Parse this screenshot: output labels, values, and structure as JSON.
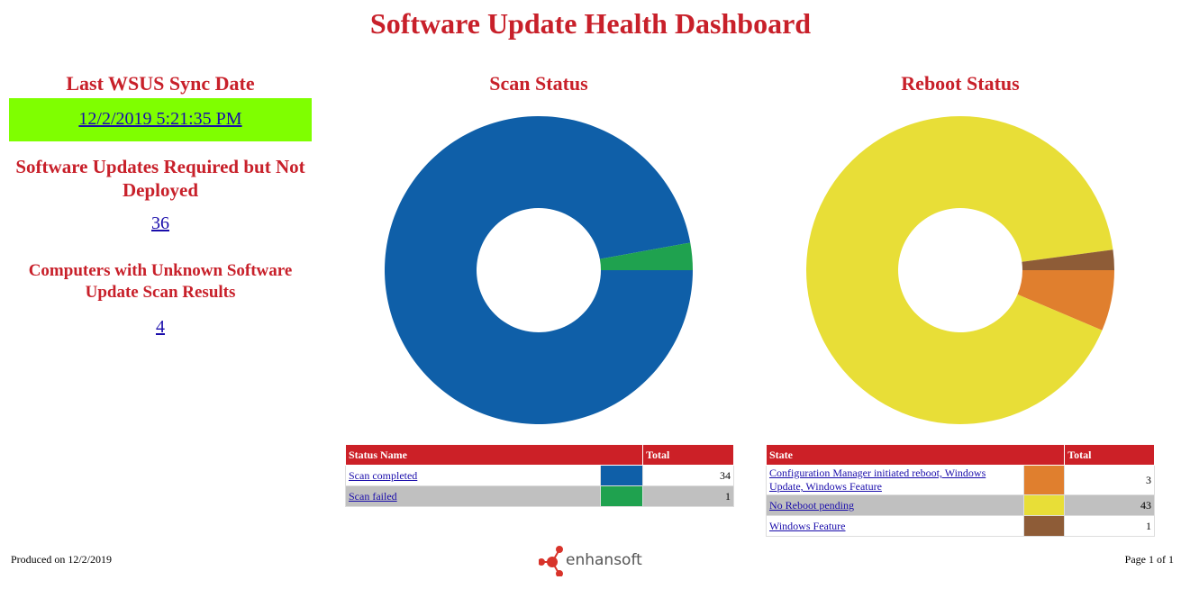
{
  "title": "Software Update Health Dashboard",
  "left": {
    "sync_title": "Last WSUS Sync Date",
    "sync_date": "12/2/2019 5:21:35 PM",
    "required_title": "Software Updates Required but Not Deployed",
    "required_value": 36,
    "unknown_title": "Computers with Unknown Software Update Scan Results",
    "unknown_value": 4
  },
  "chart_data": [
    {
      "type": "donut",
      "title": "Scan Status",
      "table_headers": [
        "Status Name",
        "Total"
      ],
      "categories": [
        "Scan completed",
        "Scan failed"
      ],
      "values": [
        34,
        1
      ],
      "colors": [
        "#0f5fa8",
        "#1fa24f"
      ]
    },
    {
      "type": "donut",
      "title": "Reboot Status",
      "table_headers": [
        "State",
        "Total"
      ],
      "categories": [
        "Configuration Manager initiated reboot, Windows Update, Windows Feature",
        "No Reboot pending",
        "Windows Feature"
      ],
      "values": [
        3,
        43,
        1
      ],
      "colors": [
        "#e07f2e",
        "#e8de37",
        "#8e5c37"
      ]
    }
  ],
  "footer": {
    "produced": "Produced on 12/2/2019",
    "logo": "enhansoft",
    "page": "Page 1 of 1"
  }
}
